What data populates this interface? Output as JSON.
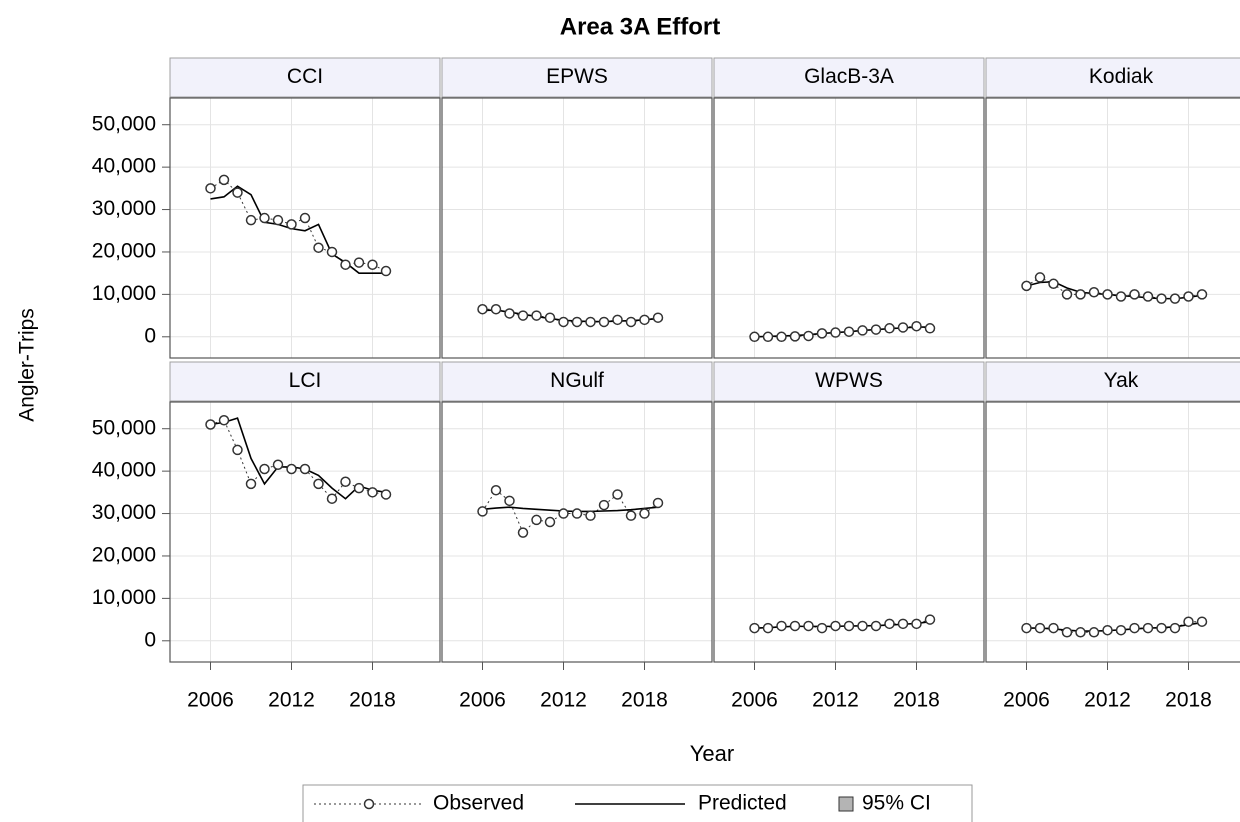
{
  "chart_data": {
    "type": "line",
    "title": "Area 3A Effort",
    "x_label": "Year",
    "y_label": "Angler-Trips",
    "x": [
      2006,
      2007,
      2008,
      2009,
      2010,
      2011,
      2012,
      2013,
      2014,
      2015,
      2016,
      2017,
      2018,
      2019
    ],
    "xlim": [
      2003,
      2023
    ],
    "xticks": [
      2006,
      2012,
      2018
    ],
    "ylim": [
      -5000,
      56300
    ],
    "yticks": [
      0,
      {
        "value": 10000,
        "label": "10,000"
      },
      {
        "value": 20000,
        "label": "20,000"
      },
      {
        "value": 30000,
        "label": "30,000"
      },
      {
        "value": 40000,
        "label": "40,000"
      },
      {
        "value": 50000,
        "label": "50,000"
      }
    ],
    "grid": true,
    "series": [
      {
        "name": "Observed",
        "color": "#333333"
      },
      {
        "name": "Predicted",
        "color": "#000000"
      },
      {
        "name": "95% CI",
        "color": "#b4b4b4"
      }
    ],
    "panels": [
      {
        "title": "CCI",
        "observed": [
          35000,
          37000,
          34000,
          27500,
          28000,
          27500,
          26500,
          28000,
          21000,
          20000,
          17000,
          17500,
          17000,
          15500
        ],
        "predicted": [
          32500,
          33000,
          35500,
          33500,
          27000,
          26500,
          25500,
          25000,
          26500,
          19500,
          17500,
          15000,
          15000,
          15000
        ]
      },
      {
        "title": "EPWS",
        "observed": [
          6500,
          6500,
          5500,
          5000,
          5000,
          4500,
          3500,
          3500,
          3500,
          3500,
          4000,
          3500,
          4000,
          4500
        ],
        "predicted": [
          6200,
          6300,
          5800,
          5300,
          4800,
          4300,
          3900,
          3700,
          3600,
          3600,
          3700,
          3800,
          4000,
          4300
        ]
      },
      {
        "title": "GlacB-3A",
        "observed": [
          0,
          0,
          0,
          100,
          200,
          800,
          1000,
          1200,
          1500,
          1700,
          2000,
          2200,
          2500,
          2000
        ],
        "predicted": [
          0,
          100,
          200,
          300,
          500,
          800,
          1000,
          1200,
          1500,
          1700,
          1900,
          2100,
          2300,
          2300
        ]
      },
      {
        "title": "Kodiak",
        "observed": [
          12000,
          14000,
          12500,
          10000,
          10000,
          10500,
          10000,
          9500,
          10000,
          9500,
          9000,
          9000,
          9500,
          10000
        ],
        "predicted": [
          12000,
          12800,
          13000,
          11500,
          10500,
          10200,
          10000,
          9700,
          9500,
          9200,
          9000,
          9000,
          9300,
          9800
        ]
      },
      {
        "title": "LCI",
        "observed": [
          51000,
          52000,
          45000,
          37000,
          40500,
          41500,
          40500,
          40500,
          37000,
          33500,
          37500,
          36000,
          35000,
          34500
        ],
        "predicted": [
          51000,
          51500,
          52500,
          43000,
          37000,
          41000,
          41000,
          40500,
          39000,
          36000,
          33500,
          36500,
          35500,
          35000
        ]
      },
      {
        "title": "NGulf",
        "observed": [
          30500,
          35500,
          33000,
          25500,
          28500,
          28000,
          30000,
          30000,
          29500,
          32000,
          34500,
          29500,
          30000,
          32500
        ],
        "predicted": [
          31000,
          31300,
          31500,
          31200,
          31000,
          30800,
          30600,
          30500,
          30500,
          30600,
          30700,
          30900,
          31200,
          31500
        ]
      },
      {
        "title": "WPWS",
        "observed": [
          3000,
          3000,
          3500,
          3500,
          3500,
          3000,
          3500,
          3500,
          3500,
          3500,
          4000,
          4000,
          4000,
          5000
        ],
        "predicted": [
          3000,
          3100,
          3300,
          3400,
          3400,
          3400,
          3400,
          3500,
          3500,
          3600,
          3700,
          3900,
          4100,
          4500
        ]
      },
      {
        "title": "Yak",
        "observed": [
          3000,
          3000,
          3000,
          2000,
          2000,
          2000,
          2500,
          2500,
          3000,
          3000,
          3000,
          3000,
          4500,
          4500
        ],
        "predicted": [
          3000,
          3000,
          2800,
          2500,
          2300,
          2300,
          2400,
          2600,
          2800,
          3000,
          3100,
          3300,
          3800,
          4300
        ]
      }
    ]
  }
}
